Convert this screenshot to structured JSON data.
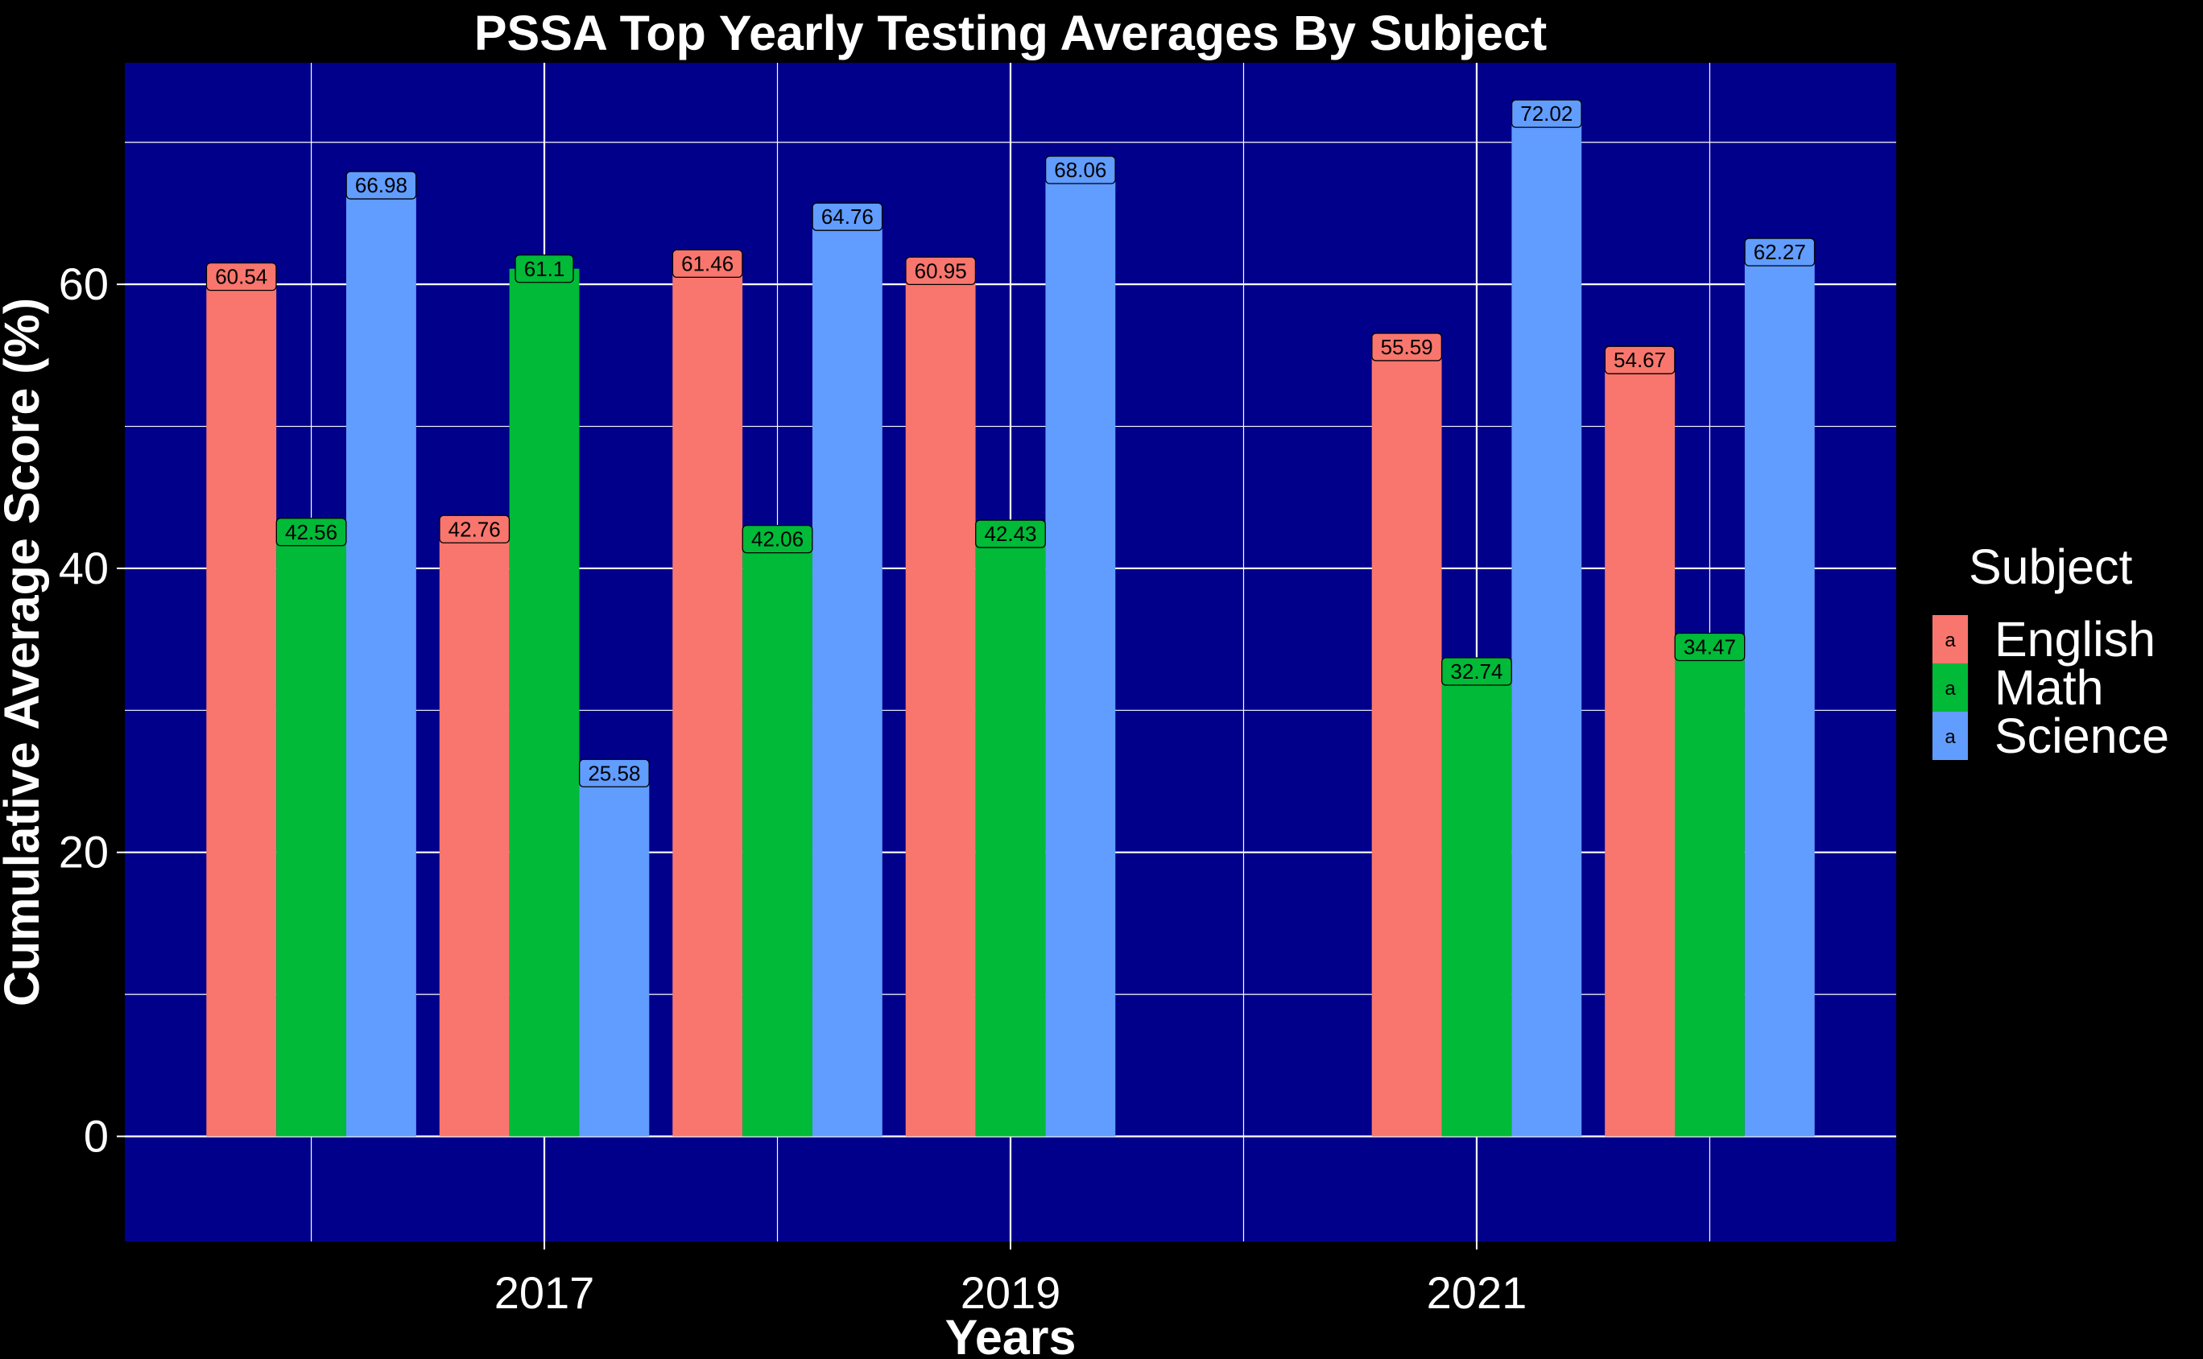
{
  "chart_data": {
    "type": "bar",
    "title": "PSSA Top Yearly Testing Averages By Subject",
    "xlabel": "Years",
    "ylabel": "Cumulative Average Score (%)",
    "x_tick_labels": [
      "2017",
      "2019",
      "2021"
    ],
    "x_ticks": [
      2017,
      2019,
      2021
    ],
    "xlim": [
      2015.2,
      2022.8
    ],
    "x": [
      2016,
      2017,
      2018,
      2019,
      2021,
      2022
    ],
    "y_ticks": [
      0,
      20,
      40,
      60
    ],
    "y_tick_labels": [
      "0",
      "20",
      "40",
      "60"
    ],
    "ylim": [
      -7.4,
      75.6
    ],
    "grid": true,
    "legend_title": "Subject",
    "legend_position": "right",
    "legend_glyph": "a",
    "colors": {
      "background": "#000000",
      "panel": "#00008b",
      "grid": "#ffffff",
      "text": "#ffffff"
    },
    "series": [
      {
        "name": "English",
        "color": "#f8766d",
        "values": [
          60.54,
          42.76,
          61.46,
          60.95,
          55.59,
          54.67
        ],
        "labels": [
          "60.54",
          "42.76",
          "61.46",
          "60.95",
          "55.59",
          "54.67"
        ]
      },
      {
        "name": "Math",
        "color": "#00ba38",
        "values": [
          42.56,
          61.1,
          42.06,
          42.43,
          32.74,
          34.47
        ],
        "labels": [
          "42.56",
          "61.1",
          "42.06",
          "42.43",
          "32.74",
          "34.47"
        ]
      },
      {
        "name": "Science",
        "color": "#619cff",
        "values": [
          66.98,
          25.58,
          64.76,
          68.06,
          72.02,
          62.27
        ],
        "labels": [
          "66.98",
          "25.58",
          "64.76",
          "68.06",
          "72.02",
          "62.27"
        ]
      }
    ]
  }
}
